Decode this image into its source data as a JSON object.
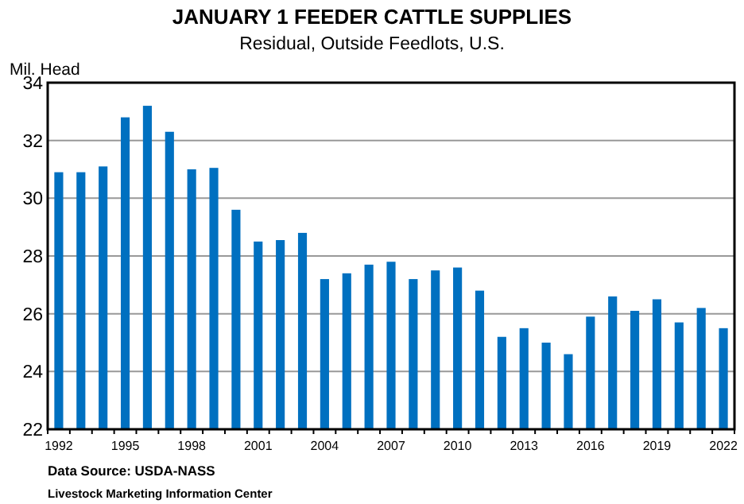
{
  "chart_data": {
    "type": "bar",
    "title": "JANUARY 1 FEEDER CATTLE SUPPLIES",
    "subtitle": "Residual, Outside Feedlots, U.S.",
    "ylabel": "Mil. Head",
    "categories": [
      "1992",
      null,
      null,
      "1995",
      null,
      null,
      "1998",
      null,
      null,
      "2001",
      null,
      null,
      "2004",
      null,
      null,
      "2007",
      null,
      null,
      "2010",
      null,
      null,
      "2013",
      null,
      null,
      "2016",
      null,
      null,
      "2019",
      null,
      null,
      "2022"
    ],
    "values": [
      30.9,
      30.9,
      31.1,
      32.8,
      33.2,
      32.3,
      31.0,
      31.05,
      29.6,
      28.5,
      28.55,
      28.8,
      27.2,
      27.4,
      27.7,
      27.8,
      27.2,
      27.5,
      27.6,
      26.8,
      25.2,
      25.5,
      25.0,
      24.6,
      25.9,
      26.6,
      26.1,
      26.5,
      25.7,
      26.2,
      25.5
    ],
    "color": "#0070c0",
    "ylim": [
      22,
      34
    ],
    "yticks": [
      22,
      24,
      26,
      28,
      30,
      32,
      34
    ],
    "grid": "y",
    "annotations": [
      "Data Source:  USDA-NASS",
      "Livestock Marketing Information Center"
    ]
  }
}
